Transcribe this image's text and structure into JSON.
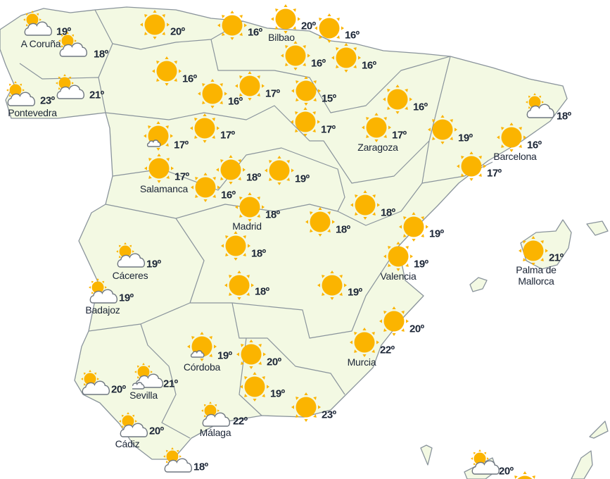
{
  "colors": {
    "land": "#f3f9e3",
    "border": "#8a949c",
    "sun": "#fbb400",
    "cloud": "#ffffff",
    "text": "#1b2536"
  },
  "locations": [
    {
      "icon": "partly-cloudy",
      "temp": "19º",
      "city": "A Coruña"
    },
    {
      "icon": "partly-cloudy",
      "temp": "18º",
      "city": ""
    },
    {
      "icon": "partly-cloudy",
      "temp": "23º",
      "city": "Pontevedra"
    },
    {
      "icon": "partly-cloudy",
      "temp": "21º",
      "city": ""
    },
    {
      "icon": "sun",
      "temp": "20º",
      "city": ""
    },
    {
      "icon": "sun",
      "temp": "16º",
      "city": ""
    },
    {
      "icon": "sun",
      "temp": "20º",
      "city": "Bilbao"
    },
    {
      "icon": "sun",
      "temp": "16º",
      "city": ""
    },
    {
      "icon": "sun",
      "temp": "16º",
      "city": ""
    },
    {
      "icon": "sun",
      "temp": "16º",
      "city": ""
    },
    {
      "icon": "sun",
      "temp": "16º",
      "city": ""
    },
    {
      "icon": "sun",
      "temp": "16º",
      "city": ""
    },
    {
      "icon": "sun",
      "temp": "17º",
      "city": ""
    },
    {
      "icon": "sun",
      "temp": "15º",
      "city": ""
    },
    {
      "icon": "sun",
      "temp": "16º",
      "city": ""
    },
    {
      "icon": "partly-cloudy",
      "temp": "18º",
      "city": ""
    },
    {
      "icon": "sun-small-cloud",
      "temp": "17º",
      "city": ""
    },
    {
      "icon": "sun",
      "temp": "17º",
      "city": ""
    },
    {
      "icon": "sun",
      "temp": "17º",
      "city": ""
    },
    {
      "icon": "sun",
      "temp": "17º",
      "city": "Zaragoza"
    },
    {
      "icon": "sun",
      "temp": "19º",
      "city": ""
    },
    {
      "icon": "sun",
      "temp": "16º",
      "city": "Barcelona"
    },
    {
      "icon": "sun",
      "temp": "17º",
      "city": ""
    },
    {
      "icon": "sun",
      "temp": "17º",
      "city": "Salamanca"
    },
    {
      "icon": "sun",
      "temp": "18º",
      "city": ""
    },
    {
      "icon": "sun",
      "temp": "19º",
      "city": ""
    },
    {
      "icon": "sun",
      "temp": "16º",
      "city": ""
    },
    {
      "icon": "sun",
      "temp": "18º",
      "city": "Madrid"
    },
    {
      "icon": "sun",
      "temp": "18º",
      "city": ""
    },
    {
      "icon": "sun",
      "temp": "18º",
      "city": ""
    },
    {
      "icon": "sun",
      "temp": "19º",
      "city": ""
    },
    {
      "icon": "partly-cloudy",
      "temp": "19º",
      "city": "Cáceres"
    },
    {
      "icon": "sun",
      "temp": "18º",
      "city": ""
    },
    {
      "icon": "sun",
      "temp": "19º",
      "city": "Valencia"
    },
    {
      "icon": "sun",
      "temp": "21º",
      "city": "Palma de Mallorca"
    },
    {
      "icon": "partly-cloudy",
      "temp": "19º",
      "city": "Badajoz"
    },
    {
      "icon": "sun",
      "temp": "18º",
      "city": ""
    },
    {
      "icon": "sun",
      "temp": "19º",
      "city": ""
    },
    {
      "icon": "sun",
      "temp": "20º",
      "city": ""
    },
    {
      "icon": "sun",
      "temp": "22º",
      "city": "Murcia"
    },
    {
      "icon": "sun-small-cloud",
      "temp": "19º",
      "city": "Córdoba"
    },
    {
      "icon": "sun",
      "temp": "20º",
      "city": ""
    },
    {
      "icon": "partly-cloudy",
      "temp": "20º",
      "city": ""
    },
    {
      "icon": "partly-cloudy-small-cloud",
      "temp": "21º",
      "city": "Sevilla"
    },
    {
      "icon": "sun",
      "temp": "19º",
      "city": ""
    },
    {
      "icon": "sun",
      "temp": "23º",
      "city": ""
    },
    {
      "icon": "partly-cloudy",
      "temp": "22º",
      "city": "Málaga"
    },
    {
      "icon": "partly-cloudy",
      "temp": "20º",
      "city": "Cádiz"
    },
    {
      "icon": "partly-cloudy",
      "temp": "18º",
      "city": ""
    },
    {
      "icon": "partly-cloudy",
      "temp": "20º",
      "city": ""
    },
    {
      "icon": "sun",
      "temp": "",
      "city": ""
    }
  ]
}
